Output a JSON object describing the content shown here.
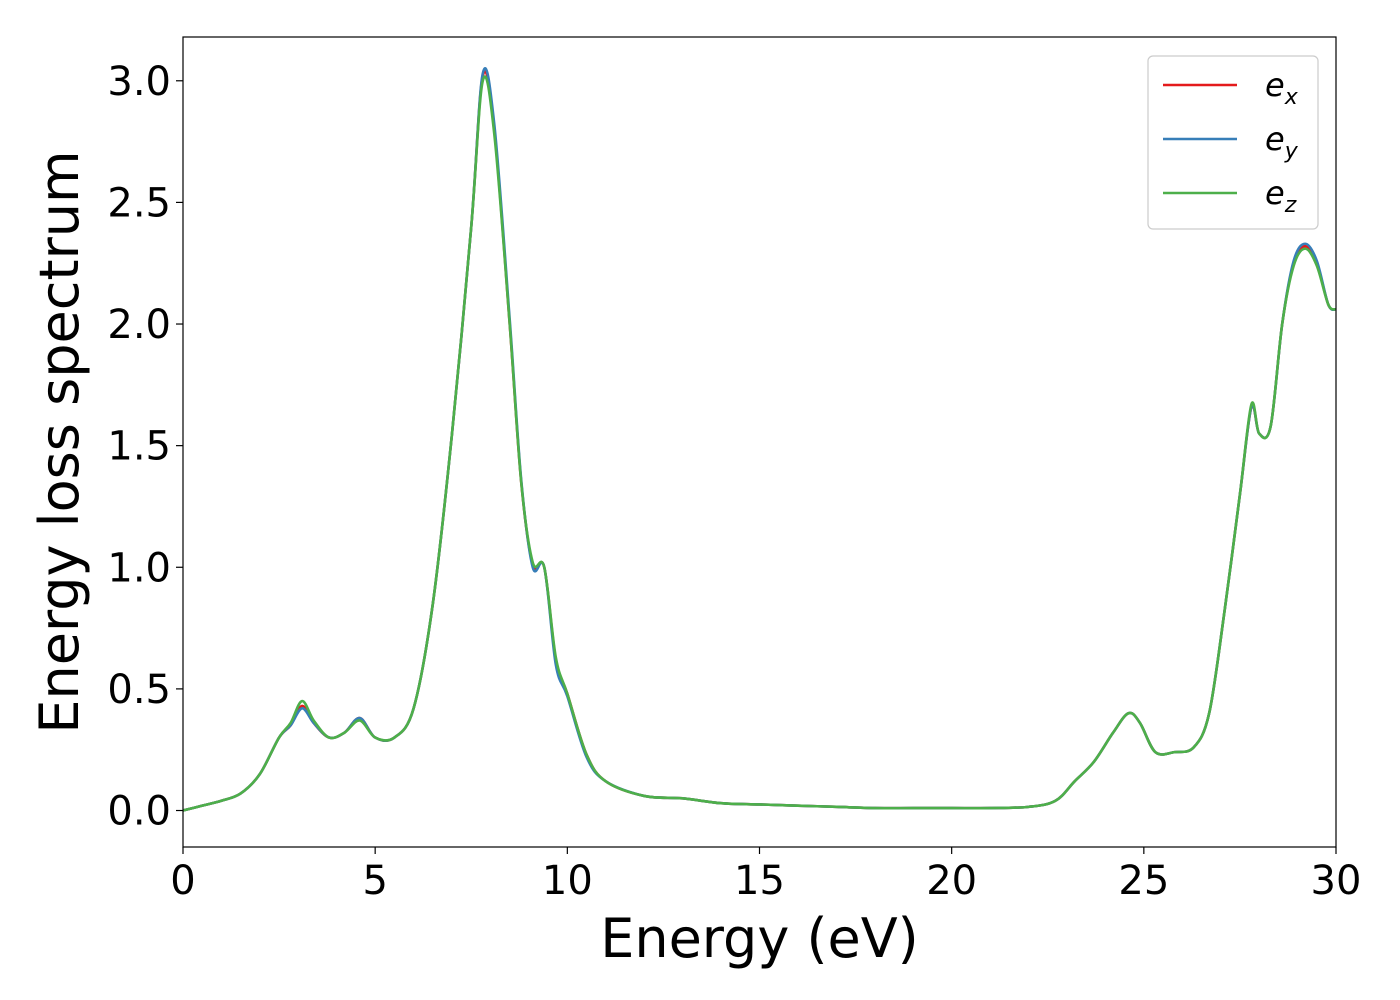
{
  "chart_data": {
    "type": "line",
    "title": "",
    "xlabel": "Energy (eV)",
    "ylabel": "Energy loss spectrum",
    "xlim": [
      0,
      30
    ],
    "ylim": [
      -0.15,
      3.18
    ],
    "xticks": [
      0,
      5,
      10,
      15,
      20,
      25,
      30
    ],
    "xtick_labels": [
      "0",
      "5",
      "10",
      "15",
      "20",
      "25",
      "30"
    ],
    "yticks": [
      0.0,
      0.5,
      1.0,
      1.5,
      2.0,
      2.5,
      3.0
    ],
    "ytick_labels": [
      "0.0",
      "0.5",
      "1.0",
      "1.5",
      "2.0",
      "2.5",
      "3.0"
    ],
    "grid": false,
    "legend_position": "top-right",
    "x": [
      0,
      0.5,
      1.0,
      1.5,
      2.0,
      2.5,
      2.8,
      3.1,
      3.4,
      3.8,
      4.2,
      4.6,
      5.0,
      5.5,
      6.0,
      6.5,
      7.0,
      7.5,
      7.8,
      8.1,
      8.5,
      8.8,
      9.1,
      9.4,
      9.7,
      10.0,
      10.5,
      11.0,
      12.0,
      13.0,
      14.0,
      15.0,
      16.0,
      17.0,
      18.0,
      19.0,
      20.0,
      21.0,
      22.0,
      22.7,
      23.2,
      23.7,
      24.2,
      24.6,
      24.9,
      25.3,
      25.8,
      26.3,
      26.7,
      27.1,
      27.5,
      27.8,
      28.0,
      28.3,
      28.6,
      28.9,
      29.2,
      29.5,
      29.8,
      30.0
    ],
    "series": [
      {
        "name": "e",
        "subscript": "x",
        "color": "#e41a1c",
        "values": [
          0.0,
          0.02,
          0.04,
          0.07,
          0.15,
          0.3,
          0.35,
          0.43,
          0.36,
          0.3,
          0.32,
          0.38,
          0.3,
          0.3,
          0.42,
          0.85,
          1.55,
          2.4,
          3.02,
          2.8,
          2.0,
          1.35,
          1.01,
          1.0,
          0.62,
          0.48,
          0.23,
          0.12,
          0.06,
          0.05,
          0.03,
          0.025,
          0.02,
          0.015,
          0.01,
          0.01,
          0.01,
          0.01,
          0.015,
          0.04,
          0.12,
          0.2,
          0.32,
          0.4,
          0.36,
          0.24,
          0.24,
          0.26,
          0.4,
          0.82,
          1.3,
          1.66,
          1.55,
          1.58,
          2.0,
          2.25,
          2.32,
          2.25,
          2.08,
          2.06
        ]
      },
      {
        "name": "e",
        "subscript": "y",
        "color": "#377eb8",
        "values": [
          0.0,
          0.02,
          0.04,
          0.07,
          0.15,
          0.3,
          0.35,
          0.42,
          0.36,
          0.3,
          0.32,
          0.38,
          0.3,
          0.3,
          0.42,
          0.85,
          1.55,
          2.4,
          3.03,
          2.82,
          2.02,
          1.36,
          1.0,
          1.0,
          0.6,
          0.47,
          0.22,
          0.12,
          0.06,
          0.05,
          0.03,
          0.025,
          0.02,
          0.015,
          0.01,
          0.01,
          0.01,
          0.01,
          0.015,
          0.04,
          0.12,
          0.2,
          0.32,
          0.4,
          0.36,
          0.24,
          0.24,
          0.26,
          0.4,
          0.82,
          1.3,
          1.66,
          1.55,
          1.58,
          2.0,
          2.26,
          2.33,
          2.26,
          2.08,
          2.06
        ]
      },
      {
        "name": "e",
        "subscript": "z",
        "color": "#4daf4a",
        "values": [
          0.0,
          0.02,
          0.04,
          0.07,
          0.15,
          0.3,
          0.36,
          0.45,
          0.37,
          0.3,
          0.32,
          0.37,
          0.3,
          0.3,
          0.42,
          0.85,
          1.55,
          2.4,
          3.0,
          2.78,
          2.0,
          1.35,
          1.02,
          1.0,
          0.63,
          0.48,
          0.23,
          0.12,
          0.06,
          0.05,
          0.03,
          0.025,
          0.02,
          0.015,
          0.01,
          0.01,
          0.01,
          0.01,
          0.015,
          0.04,
          0.12,
          0.2,
          0.32,
          0.4,
          0.36,
          0.24,
          0.24,
          0.26,
          0.4,
          0.82,
          1.3,
          1.67,
          1.55,
          1.58,
          2.0,
          2.24,
          2.31,
          2.24,
          2.08,
          2.06
        ]
      }
    ]
  }
}
